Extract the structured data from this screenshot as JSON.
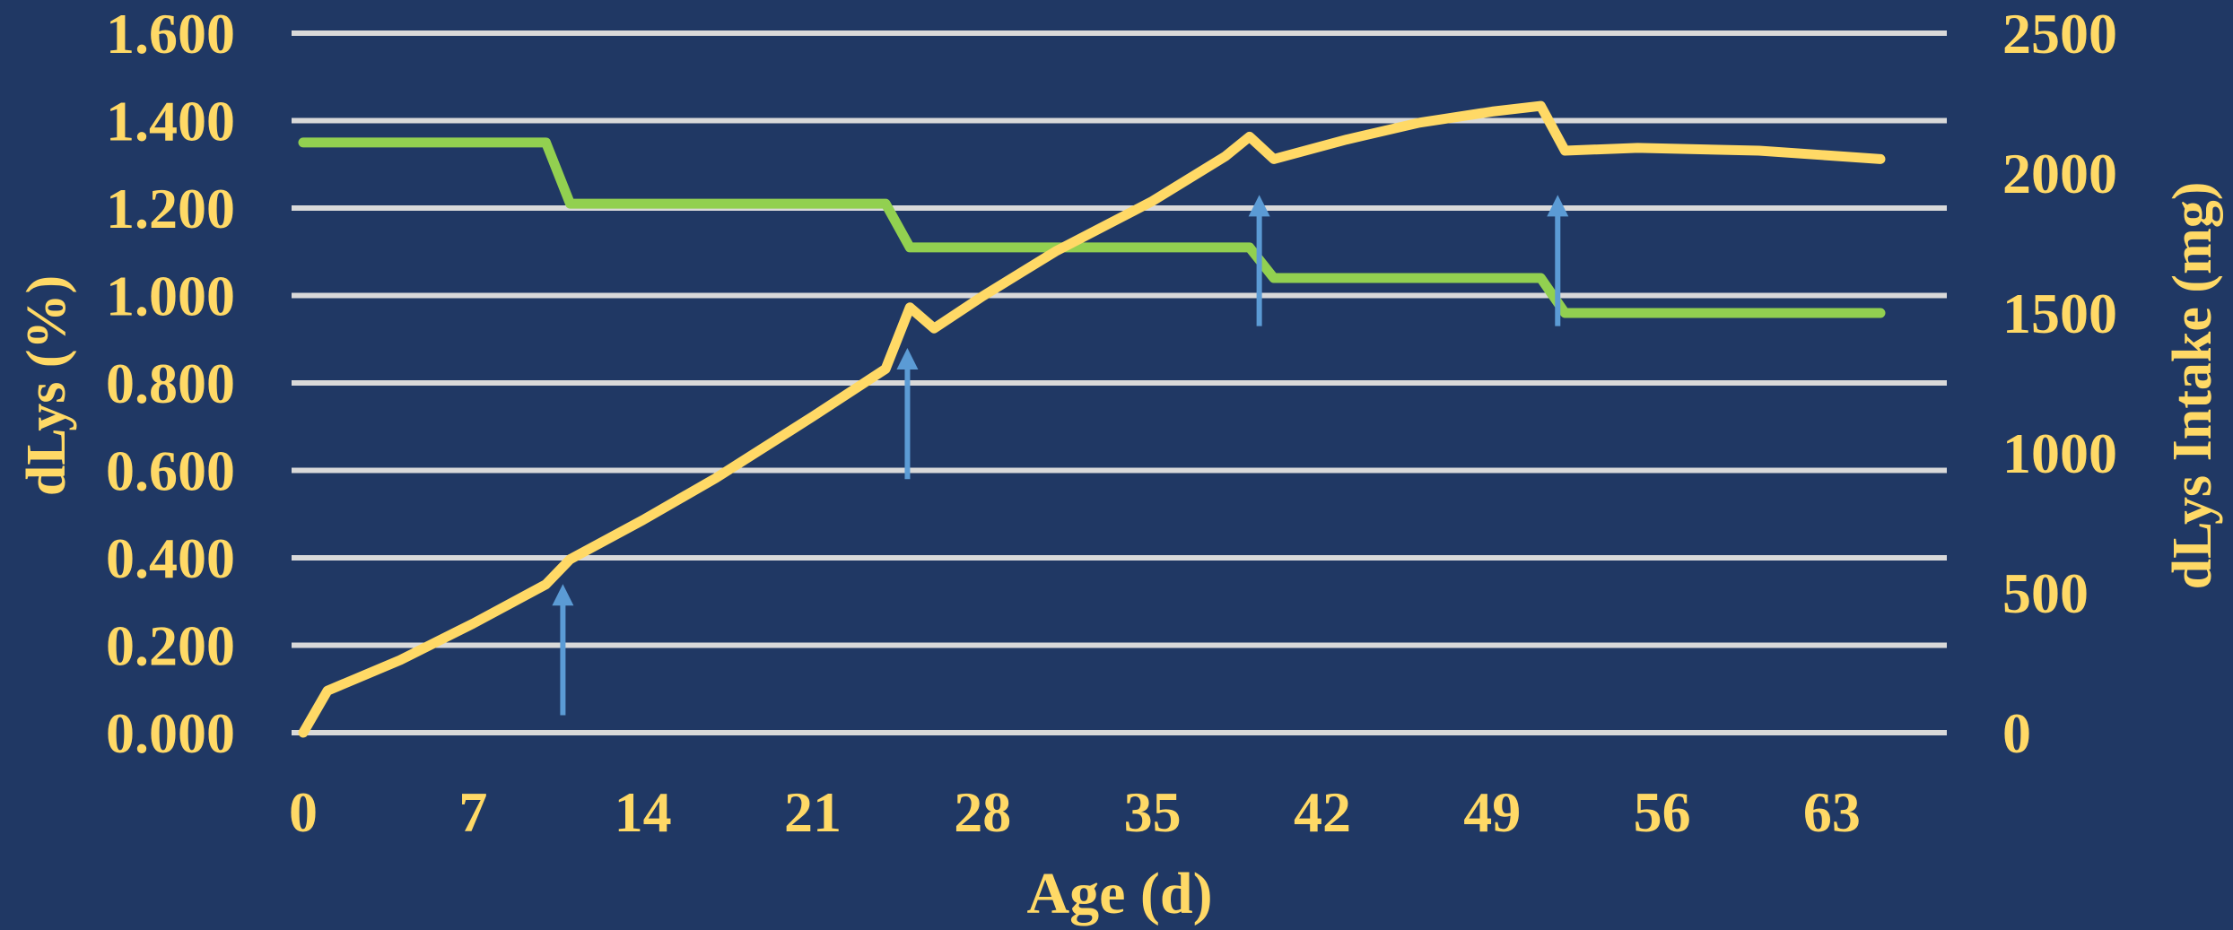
{
  "chart_data": {
    "type": "line",
    "xlabel": "Age (d)",
    "ylabel_left": "dLys (%)",
    "ylabel_right": "dLys Intake (mg)",
    "x_ticks": [
      "0",
      "7",
      "14",
      "21",
      "28",
      "35",
      "42",
      "49",
      "56",
      "63"
    ],
    "xlim": [
      0,
      65
    ],
    "y_left_ticks": [
      "0.000",
      "0.200",
      "0.400",
      "0.600",
      "0.800",
      "1.000",
      "1.200",
      "1.400",
      "1.600"
    ],
    "y_left_lim": [
      0,
      1.6
    ],
    "y_right_ticks": [
      "0",
      "500",
      "1000",
      "1500",
      "2000",
      "2500"
    ],
    "y_right_lim": [
      0,
      2500
    ],
    "gridlines": true,
    "series": [
      {
        "axis": "left",
        "color": "#92D050",
        "points": [
          [
            0,
            1.35
          ],
          [
            10,
            1.35
          ],
          [
            11,
            1.21
          ],
          [
            24,
            1.21
          ],
          [
            25,
            1.11
          ],
          [
            39,
            1.11
          ],
          [
            40,
            1.04
          ],
          [
            51,
            1.04
          ],
          [
            52,
            0.96
          ],
          [
            65,
            0.96
          ]
        ]
      },
      {
        "axis": "right",
        "color": "#FFD966",
        "points": [
          [
            0,
            0
          ],
          [
            1,
            150
          ],
          [
            4,
            260
          ],
          [
            7,
            390
          ],
          [
            10,
            530
          ],
          [
            11,
            620
          ],
          [
            14,
            760
          ],
          [
            17,
            910
          ],
          [
            21,
            1130
          ],
          [
            24,
            1300
          ],
          [
            25,
            1520
          ],
          [
            26,
            1445
          ],
          [
            28,
            1560
          ],
          [
            31,
            1720
          ],
          [
            35,
            1900
          ],
          [
            38,
            2060
          ],
          [
            39,
            2130
          ],
          [
            40,
            2050
          ],
          [
            43,
            2120
          ],
          [
            46,
            2180
          ],
          [
            49,
            2220
          ],
          [
            51,
            2240
          ],
          [
            52,
            2080
          ],
          [
            55,
            2090
          ],
          [
            60,
            2080
          ],
          [
            65,
            2050
          ]
        ]
      }
    ],
    "arrows": [
      {
        "x": 10.7,
        "from_left": 0.04,
        "to_left": 0.34
      },
      {
        "x": 24.9,
        "from_left": 0.58,
        "to_left": 0.88
      },
      {
        "x": 39.4,
        "from_left": 0.93,
        "to_left": 1.23
      },
      {
        "x": 51.7,
        "from_left": 0.93,
        "to_left": 1.23
      }
    ],
    "arrow_color": "#5B9BD5",
    "grid_color": "#D9D9D9",
    "text_color": "#FFD966"
  }
}
